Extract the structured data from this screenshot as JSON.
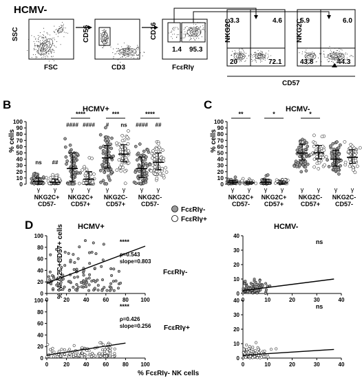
{
  "panelA": {
    "title": "HCMV-",
    "plots": [
      {
        "x_label": "FSC",
        "y_label": "SSC"
      },
      {
        "x_label": "CD3",
        "y_label": "CD56"
      },
      {
        "x_label": "FcεRIγ",
        "y_label": "CD16",
        "q_left": "1.4",
        "q_right": "95.3"
      },
      {
        "y_label": "NKG2C",
        "q_tl": "3.3",
        "q_tr": "4.6",
        "q_bl": "20",
        "q_br": "72.1"
      },
      {
        "y_label": "NKG2C",
        "q_tl": "5.9",
        "q_tr": "6.0",
        "q_bl": "43.8",
        "q_br": "44.3"
      }
    ],
    "shared_x_label": "CD57"
  },
  "panelB": {
    "letter": "B",
    "title": "HCMV+",
    "y_label": "% cells",
    "y_ticks": [
      "0",
      "10",
      "20",
      "30",
      "40",
      "50",
      "60",
      "70",
      "80",
      "90",
      "100"
    ],
    "groups": [
      {
        "line1": "NKG2C+",
        "line2": "CD57-",
        "sig_top": "",
        "left_mark": "ns",
        "right_mark": "##"
      },
      {
        "line1": "NKG2C+",
        "line2": "CD57+",
        "sig_top": "****",
        "left_mark": "####",
        "right_mark": "####"
      },
      {
        "line1": "NKG2C-",
        "line2": "CD57+",
        "sig_top": "***",
        "left_mark": "#",
        "right_mark": "ns"
      },
      {
        "line1": "NKG2C-",
        "line2": "CD57-",
        "sig_top": "****",
        "left_mark": "####",
        "right_mark": "##"
      }
    ]
  },
  "panelC": {
    "letter": "C",
    "title": "HCMV-",
    "y_label": "% cells",
    "y_ticks": [
      "0",
      "10",
      "20",
      "30",
      "40",
      "50",
      "60",
      "70",
      "80",
      "90",
      "100"
    ],
    "groups": [
      {
        "line1": "NKG2C+",
        "line2": "CD57-",
        "sig_top": "**"
      },
      {
        "line1": "NKG2C+",
        "line2": "CD57+",
        "sig_top": "*"
      },
      {
        "line1": "NKG2C-",
        "line2": "CD57+",
        "sig_top": "*"
      },
      {
        "line1": "NKG2C-",
        "line2": "CD57-",
        "sig_top": ""
      }
    ]
  },
  "x_tick": "γ",
  "legend": {
    "neg": "FcεRIγ-",
    "pos": "FcεRIγ+"
  },
  "panelD": {
    "letter": "D",
    "left_title": "HCMV+",
    "right_title": "HCMV-",
    "y_label": "% NKG2C+CD57+ cells",
    "x_label": "% FcεRIγ- NK cells",
    "row_labels": [
      "FcεRIγ-",
      "FcεRIγ+"
    ],
    "tl": {
      "sig": "****",
      "rho": "ρ=0.543",
      "slope": "slope=0.803",
      "x_ticks": [
        "0",
        "20",
        "40",
        "60",
        "80",
        "100"
      ],
      "y_ticks": [
        "0",
        "20",
        "40",
        "60",
        "80",
        "100"
      ]
    },
    "bl": {
      "sig": "****",
      "rho": "ρ=0.426",
      "slope": "slope=0.256",
      "x_ticks": [
        "0",
        "20",
        "40",
        "60",
        "80",
        "100"
      ],
      "y_ticks": [
        "0",
        "20",
        "40",
        "60",
        "80",
        "100"
      ]
    },
    "tr": {
      "sig": "ns",
      "x_ticks": [
        "0",
        "10",
        "20",
        "30",
        "40"
      ],
      "y_ticks": [
        "0",
        "10",
        "20",
        "30",
        "40"
      ]
    },
    "br": {
      "sig": "ns",
      "x_ticks": [
        "0",
        "10",
        "20",
        "30",
        "40"
      ],
      "y_ticks": [
        "0",
        "10",
        "20",
        "30",
        "40"
      ]
    }
  },
  "colors": {
    "neg_fill": "#9a9a9a",
    "pos_fill": "#ffffff",
    "ink": "#000000"
  }
}
